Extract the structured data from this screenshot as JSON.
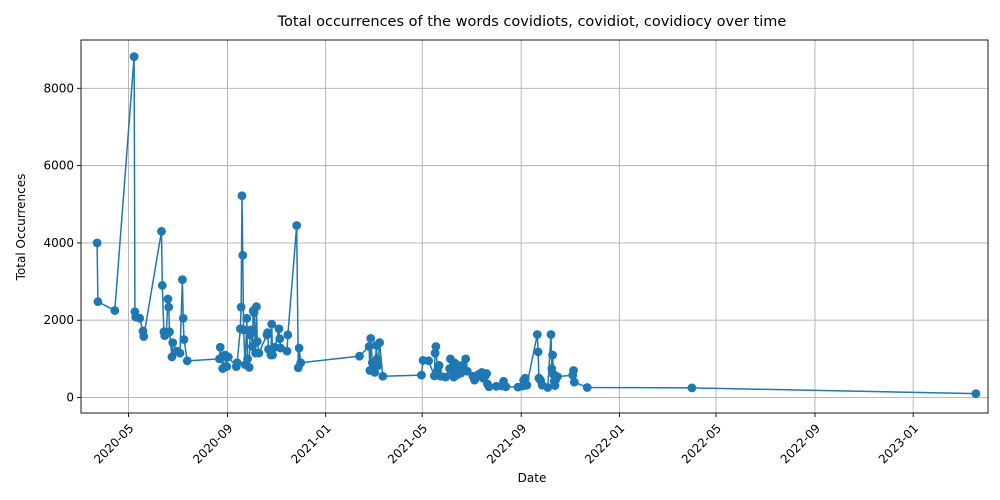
{
  "chart_data": {
    "type": "line",
    "title": "Total occurrences of the words covidiots, covidiot, covidiocy over time",
    "xlabel": "Date",
    "ylabel": "Total Occurrences",
    "grid": true,
    "marker": "circle",
    "color": "#1f77b4",
    "x_range": [
      "2020-03-03",
      "2023-04-04"
    ],
    "y_range": [
      -400,
      9250
    ],
    "x_ticks": [
      {
        "date": "2020-05-01",
        "label": "2020-05"
      },
      {
        "date": "2020-09-01",
        "label": "2020-09"
      },
      {
        "date": "2021-01-01",
        "label": "2021-01"
      },
      {
        "date": "2021-05-01",
        "label": "2021-05"
      },
      {
        "date": "2021-09-01",
        "label": "2021-09"
      },
      {
        "date": "2022-01-01",
        "label": "2022-01"
      },
      {
        "date": "2022-05-01",
        "label": "2022-05"
      },
      {
        "date": "2022-09-01",
        "label": "2022-09"
      },
      {
        "date": "2023-01-01",
        "label": "2023-01"
      }
    ],
    "y_ticks": [
      0,
      2000,
      4000,
      6000,
      8000
    ],
    "series": [
      {
        "points": [
          [
            "2020-03-23",
            4000
          ],
          [
            "2020-03-24",
            2480
          ],
          [
            "2020-04-14",
            2250
          ],
          [
            "2020-05-08",
            8820
          ],
          [
            "2020-05-09",
            2220
          ],
          [
            "2020-05-10",
            2080
          ],
          [
            "2020-05-15",
            2050
          ],
          [
            "2020-05-19",
            1720
          ],
          [
            "2020-05-20",
            1580
          ],
          [
            "2020-06-11",
            4300
          ],
          [
            "2020-06-12",
            2900
          ],
          [
            "2020-06-14",
            1700
          ],
          [
            "2020-06-15",
            1600
          ],
          [
            "2020-06-17",
            1650
          ],
          [
            "2020-06-19",
            2550
          ],
          [
            "2020-06-20",
            2340
          ],
          [
            "2020-06-21",
            1700
          ],
          [
            "2020-06-24",
            1050
          ],
          [
            "2020-06-25",
            1420
          ],
          [
            "2020-06-30",
            1200
          ],
          [
            "2020-07-04",
            1150
          ],
          [
            "2020-07-07",
            3050
          ],
          [
            "2020-07-08",
            2050
          ],
          [
            "2020-07-09",
            1500
          ],
          [
            "2020-07-13",
            950
          ],
          [
            "2020-08-22",
            1000
          ],
          [
            "2020-08-23",
            1300
          ],
          [
            "2020-08-26",
            750
          ],
          [
            "2020-08-29",
            1100
          ],
          [
            "2020-08-31",
            800
          ],
          [
            "2020-09-02",
            1050
          ],
          [
            "2020-09-12",
            800
          ],
          [
            "2020-09-13",
            900
          ],
          [
            "2020-09-17",
            1780
          ],
          [
            "2020-09-18",
            2340
          ],
          [
            "2020-09-19",
            5220
          ],
          [
            "2020-09-20",
            3680
          ],
          [
            "2020-09-21",
            1750
          ],
          [
            "2020-09-23",
            850
          ],
          [
            "2020-09-25",
            2050
          ],
          [
            "2020-09-26",
            1000
          ],
          [
            "2020-09-28",
            780
          ],
          [
            "2020-09-29",
            1620
          ],
          [
            "2020-09-30",
            1750
          ],
          [
            "2020-10-02",
            1320
          ],
          [
            "2020-10-03",
            2250
          ],
          [
            "2020-10-04",
            2200
          ],
          [
            "2020-10-06",
            1150
          ],
          [
            "2020-10-07",
            2350
          ],
          [
            "2020-10-08",
            1450
          ],
          [
            "2020-10-10",
            1150
          ],
          [
            "2020-10-20",
            1620
          ],
          [
            "2020-10-21",
            1680
          ],
          [
            "2020-10-22",
            1250
          ],
          [
            "2020-10-25",
            1100
          ],
          [
            "2020-10-26",
            1900
          ],
          [
            "2020-10-27",
            1100
          ],
          [
            "2020-10-30",
            1300
          ],
          [
            "2020-11-04",
            1780
          ],
          [
            "2020-11-05",
            1520
          ],
          [
            "2020-11-06",
            1280
          ],
          [
            "2020-11-14",
            1200
          ],
          [
            "2020-11-15",
            1620
          ],
          [
            "2020-11-26",
            4450
          ],
          [
            "2020-11-28",
            770
          ],
          [
            "2020-11-29",
            1280
          ],
          [
            "2020-12-01",
            900
          ],
          [
            "2021-02-12",
            1070
          ],
          [
            "2021-02-24",
            1320
          ],
          [
            "2021-02-25",
            700
          ],
          [
            "2021-02-26",
            1530
          ],
          [
            "2021-02-28",
            900
          ],
          [
            "2021-03-03",
            650
          ],
          [
            "2021-03-05",
            1350
          ],
          [
            "2021-03-06",
            1000
          ],
          [
            "2021-03-07",
            830
          ],
          [
            "2021-03-09",
            1420
          ],
          [
            "2021-03-13",
            550
          ],
          [
            "2021-04-30",
            580
          ],
          [
            "2021-05-02",
            960
          ],
          [
            "2021-05-09",
            950
          ],
          [
            "2021-05-16",
            560
          ],
          [
            "2021-05-17",
            1150
          ],
          [
            "2021-05-18",
            1320
          ],
          [
            "2021-05-20",
            700
          ],
          [
            "2021-05-22",
            830
          ],
          [
            "2021-05-24",
            550
          ],
          [
            "2021-05-30",
            530
          ],
          [
            "2021-06-04",
            750
          ],
          [
            "2021-06-05",
            1000
          ],
          [
            "2021-06-07",
            680
          ],
          [
            "2021-06-09",
            530
          ],
          [
            "2021-06-10",
            900
          ],
          [
            "2021-06-11",
            560
          ],
          [
            "2021-06-13",
            850
          ],
          [
            "2021-06-14",
            600
          ],
          [
            "2021-06-17",
            720
          ],
          [
            "2021-06-18",
            630
          ],
          [
            "2021-06-21",
            840
          ],
          [
            "2021-06-24",
            1000
          ],
          [
            "2021-06-26",
            680
          ],
          [
            "2021-07-03",
            550
          ],
          [
            "2021-07-05",
            450
          ],
          [
            "2021-07-07",
            520
          ],
          [
            "2021-07-10",
            600
          ],
          [
            "2021-07-14",
            650
          ],
          [
            "2021-07-16",
            500
          ],
          [
            "2021-07-18",
            550
          ],
          [
            "2021-07-20",
            620
          ],
          [
            "2021-07-21",
            350
          ],
          [
            "2021-07-23",
            280
          ],
          [
            "2021-08-01",
            290
          ],
          [
            "2021-08-08",
            300
          ],
          [
            "2021-08-10",
            420
          ],
          [
            "2021-08-13",
            280
          ],
          [
            "2021-08-28",
            270
          ],
          [
            "2021-09-03",
            300
          ],
          [
            "2021-09-04",
            450
          ],
          [
            "2021-09-06",
            500
          ],
          [
            "2021-09-08",
            320
          ],
          [
            "2021-09-21",
            1630
          ],
          [
            "2021-09-22",
            1180
          ],
          [
            "2021-09-23",
            500
          ],
          [
            "2021-09-25",
            450
          ],
          [
            "2021-09-27",
            320
          ],
          [
            "2021-10-04",
            260
          ],
          [
            "2021-10-08",
            1630
          ],
          [
            "2021-10-09",
            750
          ],
          [
            "2021-10-10",
            1100
          ],
          [
            "2021-10-11",
            600
          ],
          [
            "2021-10-12",
            420
          ],
          [
            "2021-10-13",
            310
          ],
          [
            "2021-10-14",
            470
          ],
          [
            "2021-10-16",
            540
          ],
          [
            "2021-11-04",
            580
          ],
          [
            "2021-11-05",
            700
          ],
          [
            "2021-11-06",
            400
          ],
          [
            "2021-11-22",
            260
          ],
          [
            "2022-04-01",
            250
          ],
          [
            "2023-03-20",
            100
          ]
        ]
      }
    ]
  }
}
